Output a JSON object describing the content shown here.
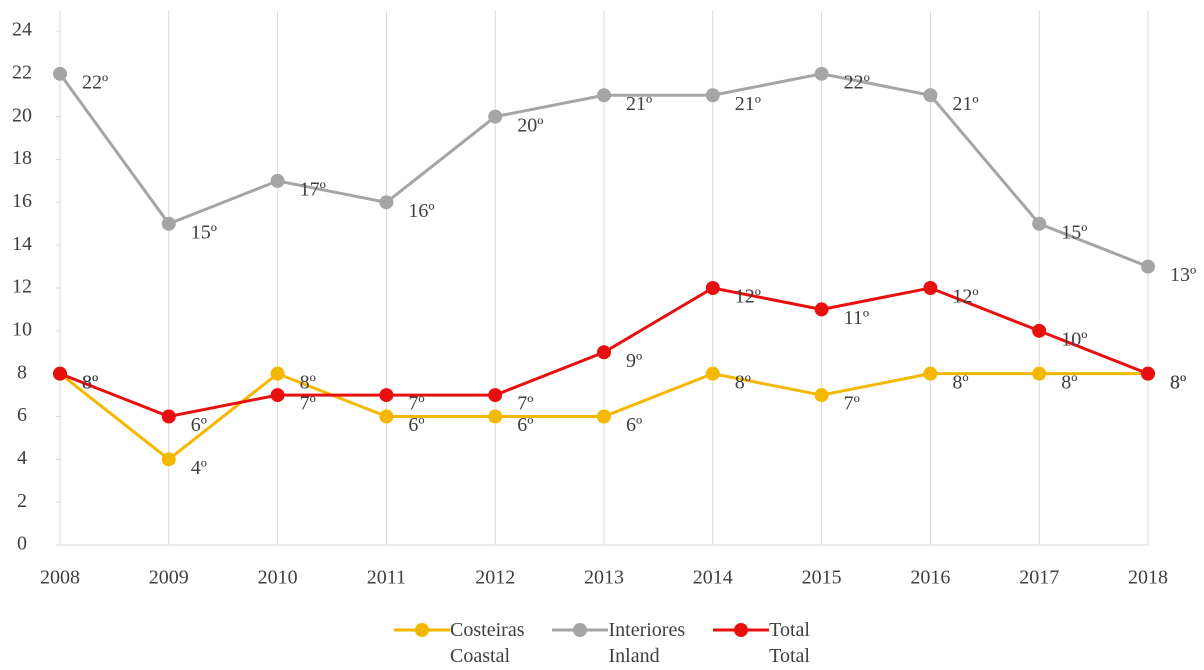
{
  "chart_data": {
    "type": "line",
    "categories": [
      "2008",
      "2009",
      "2010",
      "2011",
      "2012",
      "2013",
      "2014",
      "2015",
      "2016",
      "2017",
      "2018"
    ],
    "series": [
      {
        "name": "Costeiras\nCoastal",
        "color": "#f5b800",
        "values": [
          8,
          4,
          8,
          6,
          6,
          6,
          8,
          7,
          8,
          8,
          8
        ],
        "value_labels": [
          "8º",
          "4º",
          "8º",
          "6º",
          "6º",
          "6º",
          "8º",
          "7º",
          "8º",
          "8º",
          "8º"
        ]
      },
      {
        "name": "Interiores\nInland",
        "color": "#a5a5a5",
        "values": [
          22,
          15,
          17,
          16,
          20,
          21,
          21,
          22,
          21,
          15,
          13
        ],
        "value_labels": [
          "22º",
          "15º",
          "17º",
          "16º",
          "20º",
          "21º",
          "21º",
          "22º",
          "21º",
          "15º",
          "13º"
        ]
      },
      {
        "name": "Total\nTotal",
        "color": "#e8100f",
        "values": [
          8,
          6,
          7,
          7,
          7,
          9,
          12,
          11,
          12,
          10,
          8
        ],
        "value_labels": [
          "8º",
          "6º",
          "7º",
          "7º",
          "7º",
          "9º",
          "12º",
          "11º",
          "12º",
          "10º",
          "8º"
        ]
      }
    ],
    "ylim": [
      0,
      24
    ],
    "yticks": [
      0,
      2,
      4,
      6,
      8,
      10,
      12,
      14,
      16,
      18,
      20,
      22,
      24
    ],
    "grid": "x",
    "legend": "bottom"
  }
}
